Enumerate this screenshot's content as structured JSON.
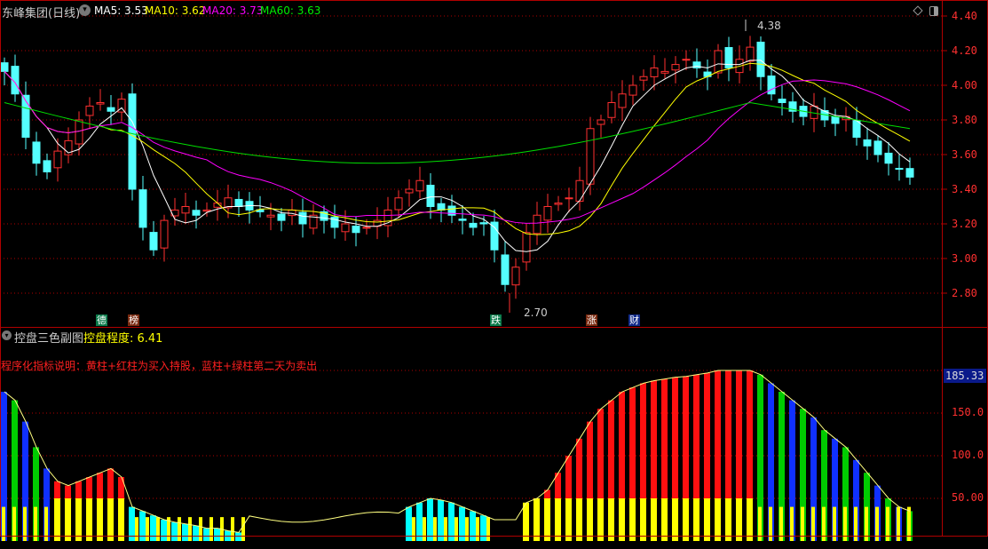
{
  "header": {
    "stock_name": "东峰集团(日线)",
    "ma5": "MA5: 3.53",
    "ma10": "MA10: 3.62",
    "ma20": "MA20: 3.73",
    "ma60": "MA60: 3.63"
  },
  "sub_header": {
    "indicator_name": "控盘三色副图",
    "control_label": "控盘程度: 6.41",
    "description": "程序化指标说明：黄柱+红柱为买入持股，蓝柱+绿柱第二天为卖出"
  },
  "price_axis": [
    "4.40",
    "4.20",
    "4.00",
    "3.80",
    "3.60",
    "3.40",
    "3.20",
    "3.00",
    "2.80"
  ],
  "indicator_axis": [
    "150.0",
    "100.0",
    "50.00"
  ],
  "current_value_box": "185.33",
  "annotations": {
    "high": "4.38",
    "low": "2.70"
  },
  "markers": [
    {
      "text": "德",
      "color": "#0a7a4a",
      "index": 9
    },
    {
      "text": "榜",
      "color": "#7a2a10",
      "index": 12
    },
    {
      "text": "跌",
      "color": "#0a7a4a",
      "index": 46
    },
    {
      "text": "涨",
      "color": "#7a2a10",
      "index": 55
    },
    {
      "text": "财",
      "color": "#102a8a",
      "index": 59
    }
  ],
  "colors": {
    "up": "#ff3030",
    "down": "#54ffff",
    "ma5": "#ffffff",
    "ma10": "#ffff00",
    "ma20": "#ff00ff",
    "ma60": "#00dd00",
    "grid": "#b00000"
  },
  "chart_data": {
    "type": "candlestick",
    "ylim": [
      2.7,
      4.45
    ],
    "closes": [
      4.08,
      3.95,
      3.7,
      3.55,
      3.5,
      3.62,
      3.68,
      3.8,
      3.88,
      3.9,
      3.85,
      3.92,
      3.4,
      3.18,
      3.05,
      3.22,
      3.28,
      3.3,
      3.25,
      3.28,
      3.32,
      3.35,
      3.3,
      3.28,
      3.27,
      3.25,
      3.22,
      3.28,
      3.2,
      3.25,
      3.22,
      3.18,
      3.2,
      3.15,
      3.18,
      3.22,
      3.28,
      3.35,
      3.4,
      3.45,
      3.3,
      3.28,
      3.25,
      3.22,
      3.18,
      3.2,
      3.05,
      2.85,
      2.95,
      3.15,
      3.25,
      3.3,
      3.32,
      3.35,
      3.45,
      3.75,
      3.8,
      3.9,
      3.95,
      4.0,
      4.05,
      4.1,
      4.08,
      4.12,
      4.15,
      4.1,
      4.05,
      4.2,
      4.1,
      4.15,
      4.22,
      4.05,
      3.95,
      3.9,
      3.85,
      3.82,
      3.88,
      3.8,
      3.78,
      3.82,
      3.7,
      3.65,
      3.6,
      3.55,
      3.52,
      3.47
    ],
    "indicator": {
      "ylim": [
        0,
        205
      ],
      "values": [
        175,
        165,
        140,
        110,
        85,
        70,
        65,
        70,
        75,
        80,
        85,
        75,
        40,
        35,
        30,
        25,
        22,
        20,
        18,
        15,
        15,
        12,
        10,
        0,
        0,
        0,
        0,
        0,
        0,
        0,
        0,
        0,
        0,
        0,
        0,
        0,
        0,
        0,
        40,
        45,
        50,
        48,
        45,
        40,
        35,
        30,
        0,
        0,
        0,
        45,
        50,
        60,
        80,
        100,
        120,
        140,
        155,
        165,
        175,
        180,
        185,
        188,
        190,
        192,
        193,
        195,
        197,
        200,
        200,
        200,
        200,
        195,
        185,
        175,
        165,
        155,
        145,
        130,
        120,
        110,
        95,
        80,
        65,
        50,
        40,
        35
      ],
      "types": [
        "down",
        "down",
        "down",
        "down",
        "down",
        "up",
        "up",
        "up",
        "up",
        "up",
        "up",
        "up",
        "low",
        "low",
        "low",
        "low",
        "low",
        "low",
        "low",
        "low",
        "low",
        "low",
        "low",
        "none",
        "none",
        "none",
        "none",
        "none",
        "none",
        "none",
        "none",
        "none",
        "none",
        "none",
        "none",
        "none",
        "none",
        "none",
        "low",
        "low",
        "low",
        "low",
        "low",
        "low",
        "low",
        "low",
        "none",
        "none",
        "none",
        "up",
        "up",
        "up",
        "up",
        "up",
        "up",
        "up",
        "up",
        "up",
        "up",
        "up",
        "up",
        "up",
        "up",
        "up",
        "up",
        "up",
        "up",
        "up",
        "up",
        "up",
        "up",
        "down",
        "down",
        "down",
        "down",
        "down",
        "down",
        "down",
        "down",
        "down",
        "down",
        "down",
        "down",
        "down",
        "down",
        "down"
      ]
    }
  }
}
